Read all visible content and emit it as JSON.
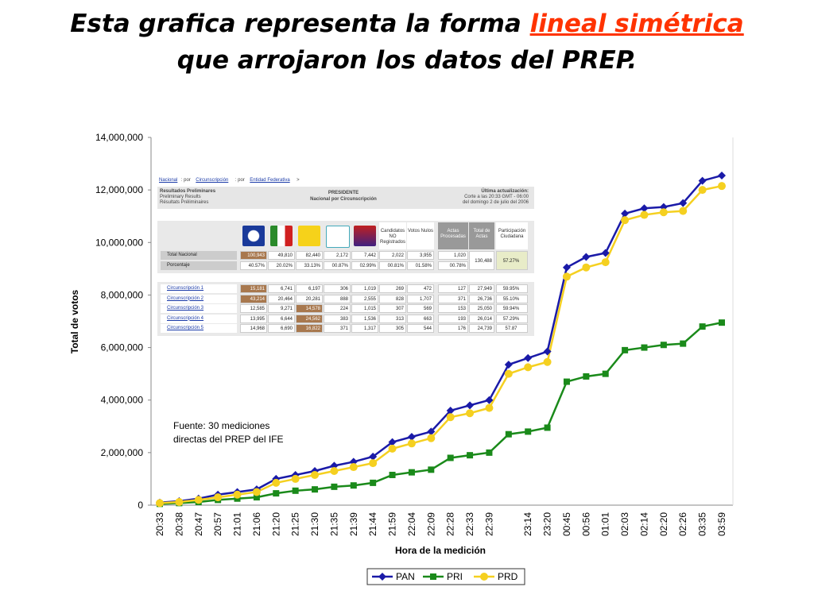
{
  "title": {
    "line1": "Esta grafica representa la forma ",
    "highlight": "lineal simétrica",
    "line2": "que arrojaron los datos del PREP."
  },
  "chart_data": {
    "type": "line",
    "categories": [
      "20:33",
      "20:38",
      "20:47",
      "20:57",
      "21:01",
      "21:06",
      "21:20",
      "21:25",
      "21:30",
      "21:35",
      "21:39",
      "21:44",
      "21:59",
      "22:04",
      "22:09",
      "22:28",
      "22:33",
      "22:39",
      null,
      "23:14",
      "23:20",
      "00:45",
      "00:56",
      "01:01",
      "02:03",
      "02:14",
      "02:20",
      "02:26",
      "03:35",
      "03:59"
    ],
    "series": [
      {
        "name": "PAN",
        "color": "#1a1aa8",
        "marker": "diamond",
        "values": [
          100000,
          150000,
          250000,
          400000,
          500000,
          600000,
          1000000,
          1150000,
          1300000,
          1500000,
          1650000,
          1850000,
          2400000,
          2600000,
          2800000,
          3600000,
          3800000,
          4000000,
          5350000,
          5600000,
          5850000,
          9050000,
          9450000,
          9600000,
          11100000,
          11300000,
          11350000,
          11500000,
          12350000,
          12550000
        ]
      },
      {
        "name": "PRI",
        "color": "#1a8a1a",
        "marker": "square",
        "values": [
          50000,
          80000,
          120000,
          200000,
          250000,
          300000,
          450000,
          550000,
          600000,
          700000,
          750000,
          850000,
          1150000,
          1250000,
          1350000,
          1800000,
          1900000,
          2000000,
          2700000,
          2800000,
          2950000,
          4700000,
          4900000,
          5000000,
          5900000,
          6000000,
          6100000,
          6150000,
          6800000,
          6950000
        ]
      },
      {
        "name": "PRD",
        "color": "#f5d020",
        "marker": "circle",
        "values": [
          80000,
          120000,
          200000,
          300000,
          400000,
          500000,
          850000,
          1000000,
          1150000,
          1300000,
          1450000,
          1600000,
          2150000,
          2350000,
          2550000,
          3350000,
          3500000,
          3700000,
          5000000,
          5250000,
          5450000,
          8700000,
          9050000,
          9250000,
          10850000,
          11050000,
          11150000,
          11200000,
          12000000,
          12150000
        ]
      }
    ],
    "ylim": [
      0,
      14000000
    ],
    "yticks": [
      0,
      {
        "value": 2000000,
        "label": "2,000,000"
      },
      {
        "value": 4000000,
        "label": "4,000,000"
      },
      {
        "value": 6000000,
        "label": "6,000,000"
      },
      {
        "value": 8000000,
        "label": "8,000,000"
      },
      {
        "value": 10000000,
        "label": "10,000,000"
      },
      {
        "value": 12000000,
        "label": "12,000,000"
      },
      {
        "value": 14000000,
        "label": "14,000,000"
      }
    ],
    "ylabel": "Total de votos",
    "xlabel": "Hora de la medición",
    "annotation": [
      "Fuente: 30 mediciones",
      "directas del PREP del IFE"
    ],
    "legend": "bottom"
  },
  "inset": {
    "breadcrumb": [
      "Nacional",
      ": por",
      "Circunscripción",
      ": por",
      "Entidad Federativa",
      ">"
    ],
    "header_left": [
      "Resultados Preliminares",
      "Preliminary Results",
      "Résultats Préliminaires"
    ],
    "header_center": [
      "PRESIDENTE",
      "Nacional por Circunscripción"
    ],
    "header_right": [
      "Última actualización:",
      "Corte a las 20:33 GMT - 06:00",
      "del domingo 2 de julio del 2006"
    ],
    "columns": [
      "Candidatos NO Registrados",
      "Votos Nulos",
      "Actas Procesadas",
      "Total de Actas",
      "Participación Ciudadana"
    ],
    "rows": [
      {
        "label": "Total Nacional",
        "cells": [
          "100,943",
          "49,810",
          "82,440",
          "2,172",
          "7,442",
          "2,022",
          "3,955",
          "1,020",
          "130,488",
          "57.27%"
        ]
      },
      {
        "label": "Porcentaje",
        "cells": [
          "40.57%",
          "20.02%",
          "33.13%",
          "00.87%",
          "02.99%",
          "00.81%",
          "01.58%",
          "00.78%"
        ]
      },
      {
        "label": "Circunscripción 1",
        "cells": [
          "15,181",
          "6,741",
          "6,197",
          "306",
          "1,019",
          "269",
          "472",
          "127",
          "27,949",
          "59.95%"
        ]
      },
      {
        "label": "Circunscripción 2",
        "cells": [
          "43,214",
          "20,464",
          "20,281",
          "888",
          "2,555",
          "828",
          "1,707",
          "371",
          "26,736",
          "55.10%"
        ]
      },
      {
        "label": "Circunscripción 3",
        "cells": [
          "12,585",
          "9,271",
          "14,578",
          "224",
          "1,015",
          "307",
          "569",
          "153",
          "25,050",
          "59.94%"
        ]
      },
      {
        "label": "Circunscripción 4",
        "cells": [
          "13,995",
          "6,644",
          "24,562",
          "383",
          "1,536",
          "313",
          "663",
          "193",
          "26,014",
          "57.29%"
        ]
      },
      {
        "label": "Circunscripción 5",
        "cells": [
          "14,968",
          "6,690",
          "16,822",
          "371",
          "1,317",
          "305",
          "544",
          "176",
          "24,739",
          "57.87"
        ]
      }
    ]
  }
}
